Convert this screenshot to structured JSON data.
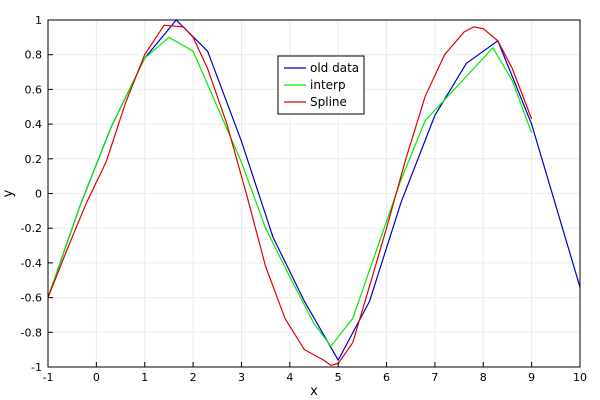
{
  "chart_data": {
    "type": "line",
    "title": "",
    "xlabel": "x",
    "ylabel": "y",
    "xlim": [
      -1,
      10
    ],
    "ylim": [
      -1,
      1
    ],
    "x_ticks": [
      -1,
      0,
      1,
      2,
      3,
      4,
      5,
      6,
      7,
      8,
      9,
      10
    ],
    "y_ticks": [
      -1,
      -0.8,
      -0.6,
      -0.4,
      -0.2,
      0,
      0.2,
      0.4,
      0.6,
      0.8,
      1
    ],
    "x_tick_labels": [
      "-1",
      "0",
      "1",
      "2",
      "3",
      "4",
      "5",
      "6",
      "7",
      "8",
      "9",
      "10"
    ],
    "y_tick_labels": [
      "-1",
      "-0.8",
      "-0.6",
      "-0.4",
      "-0.2",
      "0",
      "0.2",
      "0.4",
      "0.6",
      "0.8",
      "1"
    ],
    "grid": true,
    "legend_position": "top-center",
    "series": [
      {
        "name": "old data",
        "color": "#0000cc",
        "x": [
          -1,
          -0.35,
          0.3,
          1,
          1.65,
          2.3,
          3,
          3.65,
          4.3,
          5,
          5.65,
          6.3,
          7,
          7.65,
          8.3,
          9,
          10
        ],
        "y": [
          -0.6,
          -0.08,
          0.38,
          0.78,
          1.0,
          0.82,
          0.3,
          -0.25,
          -0.62,
          -0.96,
          -0.62,
          -0.05,
          0.45,
          0.75,
          0.88,
          0.4,
          -0.54
        ]
      },
      {
        "name": "interp",
        "color": "#00ee00",
        "x": [
          -1,
          -0.35,
          0.3,
          1,
          1.5,
          2.0,
          2.5,
          3,
          3.5,
          4,
          4.5,
          4.85,
          5.3,
          5.8,
          6.3,
          6.8,
          7.3,
          7.8,
          8.2,
          8.6,
          9.0
        ],
        "y": [
          -0.6,
          -0.08,
          0.38,
          0.78,
          0.9,
          0.82,
          0.5,
          0.18,
          -0.2,
          -0.48,
          -0.75,
          -0.88,
          -0.72,
          -0.32,
          0.08,
          0.42,
          0.57,
          0.72,
          0.84,
          0.65,
          0.35
        ]
      },
      {
        "name": "Spline",
        "color": "#dd0000",
        "x": [
          -1,
          -0.6,
          -0.2,
          0.2,
          0.6,
          1.0,
          1.4,
          1.8,
          2.0,
          2.3,
          2.7,
          3.1,
          3.5,
          3.9,
          4.3,
          4.7,
          4.85,
          5.0,
          5.3,
          5.6,
          6.0,
          6.4,
          6.8,
          7.2,
          7.6,
          7.8,
          8.0,
          8.3,
          8.6,
          9.0
        ],
        "y": [
          -0.6,
          -0.32,
          -0.05,
          0.18,
          0.52,
          0.8,
          0.97,
          0.96,
          0.9,
          0.72,
          0.4,
          0.0,
          -0.42,
          -0.72,
          -0.9,
          -0.96,
          -0.99,
          -0.98,
          -0.86,
          -0.58,
          -0.2,
          0.2,
          0.56,
          0.8,
          0.93,
          0.96,
          0.95,
          0.88,
          0.72,
          0.43
        ]
      }
    ]
  }
}
